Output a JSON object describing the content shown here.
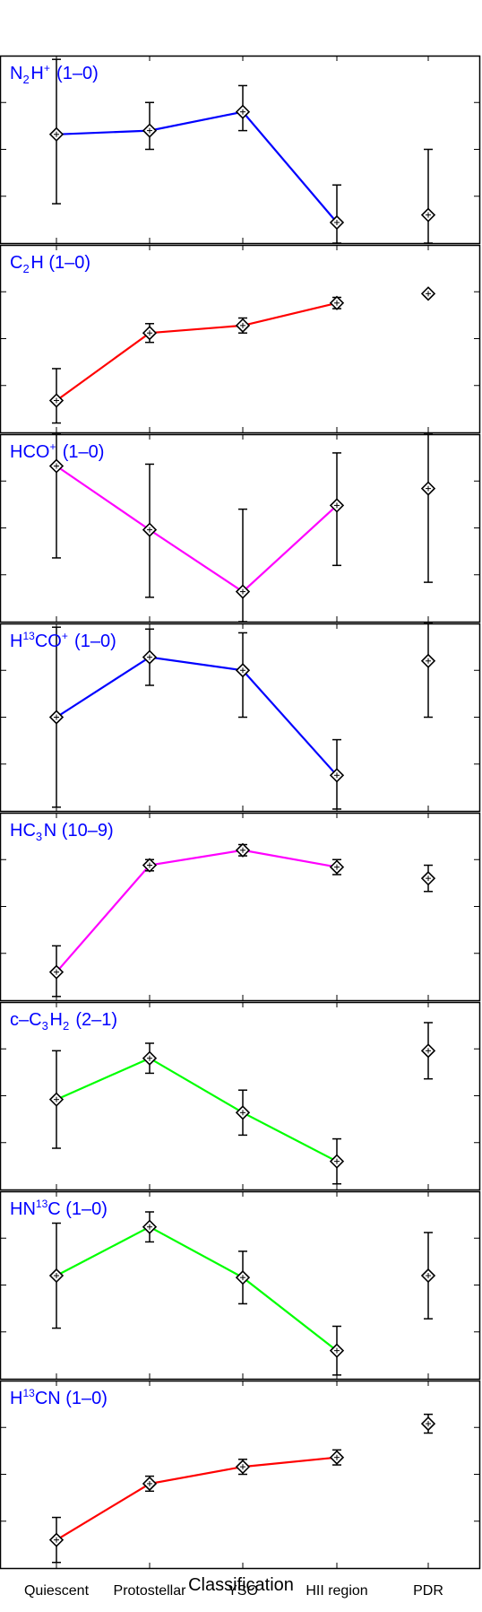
{
  "chart_data": {
    "type": "line",
    "categories": [
      "Quiescent",
      "Protostellar",
      "YSO",
      "HII region",
      "PDR"
    ],
    "xlabel": "Classification",
    "panels": [
      {
        "label": {
          "base": "N",
          "sub": "2",
          "mid": "H",
          "sup": "+",
          "tail": " (1–0)"
        },
        "line_color": "#0000ff",
        "ylim": [
          0,
          1
        ],
        "values": [
          0.58,
          0.6,
          0.7,
          0.11,
          0.15
        ],
        "err_low": [
          0.37,
          0.1,
          0.1,
          0.12,
          0.16
        ],
        "err_high": [
          0.4,
          0.15,
          0.14,
          0.2,
          0.35
        ],
        "line_indices": [
          0,
          1,
          2,
          3
        ]
      },
      {
        "label": {
          "base": "C",
          "sub": "2",
          "mid": "H",
          "sup": "",
          "tail": " (1–0)"
        },
        "line_color": "#ff0000",
        "ylim": [
          0,
          1
        ],
        "values": [
          0.17,
          0.53,
          0.57,
          0.69,
          0.74
        ],
        "err_low": [
          0.12,
          0.05,
          0.04,
          0.03,
          0.0
        ],
        "err_high": [
          0.17,
          0.05,
          0.04,
          0.03,
          0.0
        ],
        "line_indices": [
          0,
          1,
          2,
          3
        ]
      },
      {
        "label": {
          "base": "HCO",
          "sub": "",
          "mid": "",
          "sup": "+",
          "tail": " (1–0)"
        },
        "line_color": "#ff00ff",
        "ylim": [
          0,
          1
        ],
        "values": [
          0.83,
          0.49,
          0.16,
          0.62,
          0.71
        ],
        "err_low": [
          0.49,
          0.36,
          0.16,
          0.32,
          0.5
        ],
        "err_high": [
          0.35,
          0.35,
          0.44,
          0.28,
          0.39
        ],
        "line_indices": [
          0,
          1,
          2,
          3
        ]
      },
      {
        "label": {
          "base": "H",
          "sub": "",
          "mid": "CO",
          "sup": "13",
          "tail": "",
          "sup_after": "+",
          "tail2": " (1–0)"
        },
        "line_color": "#0000ff",
        "ylim": [
          0,
          1
        ],
        "values": [
          0.5,
          0.82,
          0.75,
          0.19,
          0.8
        ],
        "err_low": [
          0.48,
          0.15,
          0.25,
          0.18,
          0.3
        ],
        "err_high": [
          0.48,
          0.15,
          0.2,
          0.19,
          0.27
        ],
        "line_indices": [
          0,
          1,
          2,
          3
        ]
      },
      {
        "label": {
          "base": "HC",
          "sub": "3",
          "mid": "N",
          "sup": "",
          "tail": " (10–9)"
        },
        "line_color": "#ff00ff",
        "ylim": [
          0,
          1
        ],
        "values": [
          0.15,
          0.72,
          0.8,
          0.71,
          0.65
        ],
        "err_low": [
          0.13,
          0.03,
          0.03,
          0.04,
          0.07
        ],
        "err_high": [
          0.14,
          0.03,
          0.03,
          0.04,
          0.07
        ],
        "line_indices": [
          0,
          1,
          2,
          3
        ]
      },
      {
        "label": {
          "base": "c–C",
          "sub": "3",
          "mid": "H",
          "sup": "",
          "sub2": "2",
          "tail": " (2–1)"
        },
        "line_color": "#00ff00",
        "ylim": [
          0,
          1
        ],
        "values": [
          0.48,
          0.7,
          0.41,
          0.15,
          0.74
        ],
        "err_low": [
          0.26,
          0.08,
          0.12,
          0.12,
          0.15
        ],
        "err_high": [
          0.26,
          0.08,
          0.12,
          0.12,
          0.15
        ],
        "line_indices": [
          0,
          1,
          2,
          3
        ]
      },
      {
        "label": {
          "base": "HN",
          "sub": "",
          "mid": "C",
          "sup": "13",
          "tail": " (1–0)"
        },
        "line_color": "#00ff00",
        "ylim": [
          0,
          1
        ],
        "values": [
          0.55,
          0.81,
          0.54,
          0.15,
          0.55
        ],
        "err_low": [
          0.28,
          0.08,
          0.14,
          0.13,
          0.23
        ],
        "err_high": [
          0.28,
          0.08,
          0.14,
          0.13,
          0.23
        ],
        "line_indices": [
          0,
          1,
          2,
          3
        ]
      },
      {
        "label": {
          "base": "H",
          "sub": "",
          "mid": "CN",
          "sup": "13",
          "tail": " (1–0)"
        },
        "line_color": "#ff0000",
        "ylim": [
          0,
          1
        ],
        "values": [
          0.15,
          0.45,
          0.54,
          0.59,
          0.77
        ],
        "err_low": [
          0.12,
          0.04,
          0.04,
          0.04,
          0.05
        ],
        "err_high": [
          0.12,
          0.04,
          0.04,
          0.04,
          0.05
        ],
        "line_indices": [
          0,
          1,
          2,
          3
        ]
      }
    ]
  }
}
